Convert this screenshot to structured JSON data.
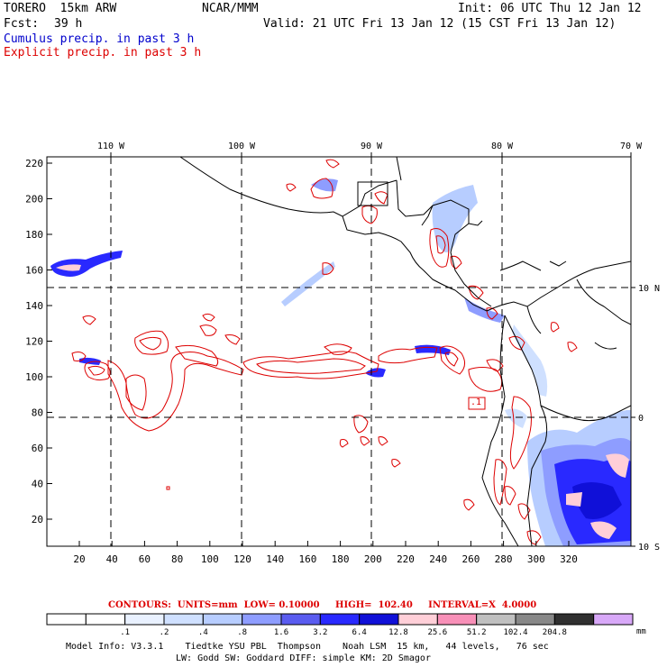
{
  "header": {
    "model": "TORERO  15km ARW",
    "org": "NCAR/MMM",
    "init": "Init: 06 UTC Thu 12 Jan 12",
    "fcst_label": "Fcst:",
    "fcst_value": "39 h",
    "valid": "Valid: 21 UTC Fri 13 Jan 12 (15 CST Fri 13 Jan 12)",
    "legend_cumulus": "Cumulus precip. in past 3 h",
    "legend_explicit": "Explicit precip. in past 3 h"
  },
  "map": {
    "top_lon_labels": [
      "110 W",
      "100 W",
      "90 W",
      "80 W",
      "70 W"
    ],
    "y_ticks": [
      "220",
      "200",
      "180",
      "160",
      "140",
      "120",
      "100",
      "80",
      "60",
      "40",
      "20"
    ],
    "x_ticks": [
      "20",
      "40",
      "60",
      "80",
      "100",
      "120",
      "140",
      "160",
      "180",
      "200",
      "220",
      "240",
      "260",
      "280",
      "300",
      "320"
    ],
    "lat_labels": [
      "10 N",
      "0",
      "10 S"
    ],
    "box_label": ".1"
  },
  "contour_info": "CONTOURS:  UNITS=mm  LOW= 0.10000     HIGH=  102.40     INTERVAL=X  4.0000",
  "colorbar": {
    "colors": [
      "#ffffff",
      "#ffffff",
      "#e9f1ff",
      "#cfe0ff",
      "#b7cdff",
      "#8e9dff",
      "#5a5cf0",
      "#2929ff",
      "#1010d8",
      "#ffcfd8",
      "#f890b8",
      "#c0c0c0",
      "#888888",
      "#303030",
      "#d8a8f8"
    ],
    "labels": [
      ".1",
      ".2",
      ".4",
      ".8",
      "1.6",
      "3.2",
      "6.4",
      "12.8",
      "25.6",
      "51.2",
      "102.4",
      "204.8"
    ],
    "units": "mm"
  },
  "footer": {
    "line1": "Model Info: V3.3.1    Tiedtke YSU PBL  Thompson    Noah LSM  15 km,   44 levels,   76 sec",
    "line2": "LW: Godd SW: Goddard DIFF: simple KM: 2D Smagor"
  },
  "colors": {
    "cumulus": "#0000cc",
    "explicit": "#dd0000",
    "contour": "#dd0000",
    "coast": "#000000"
  }
}
